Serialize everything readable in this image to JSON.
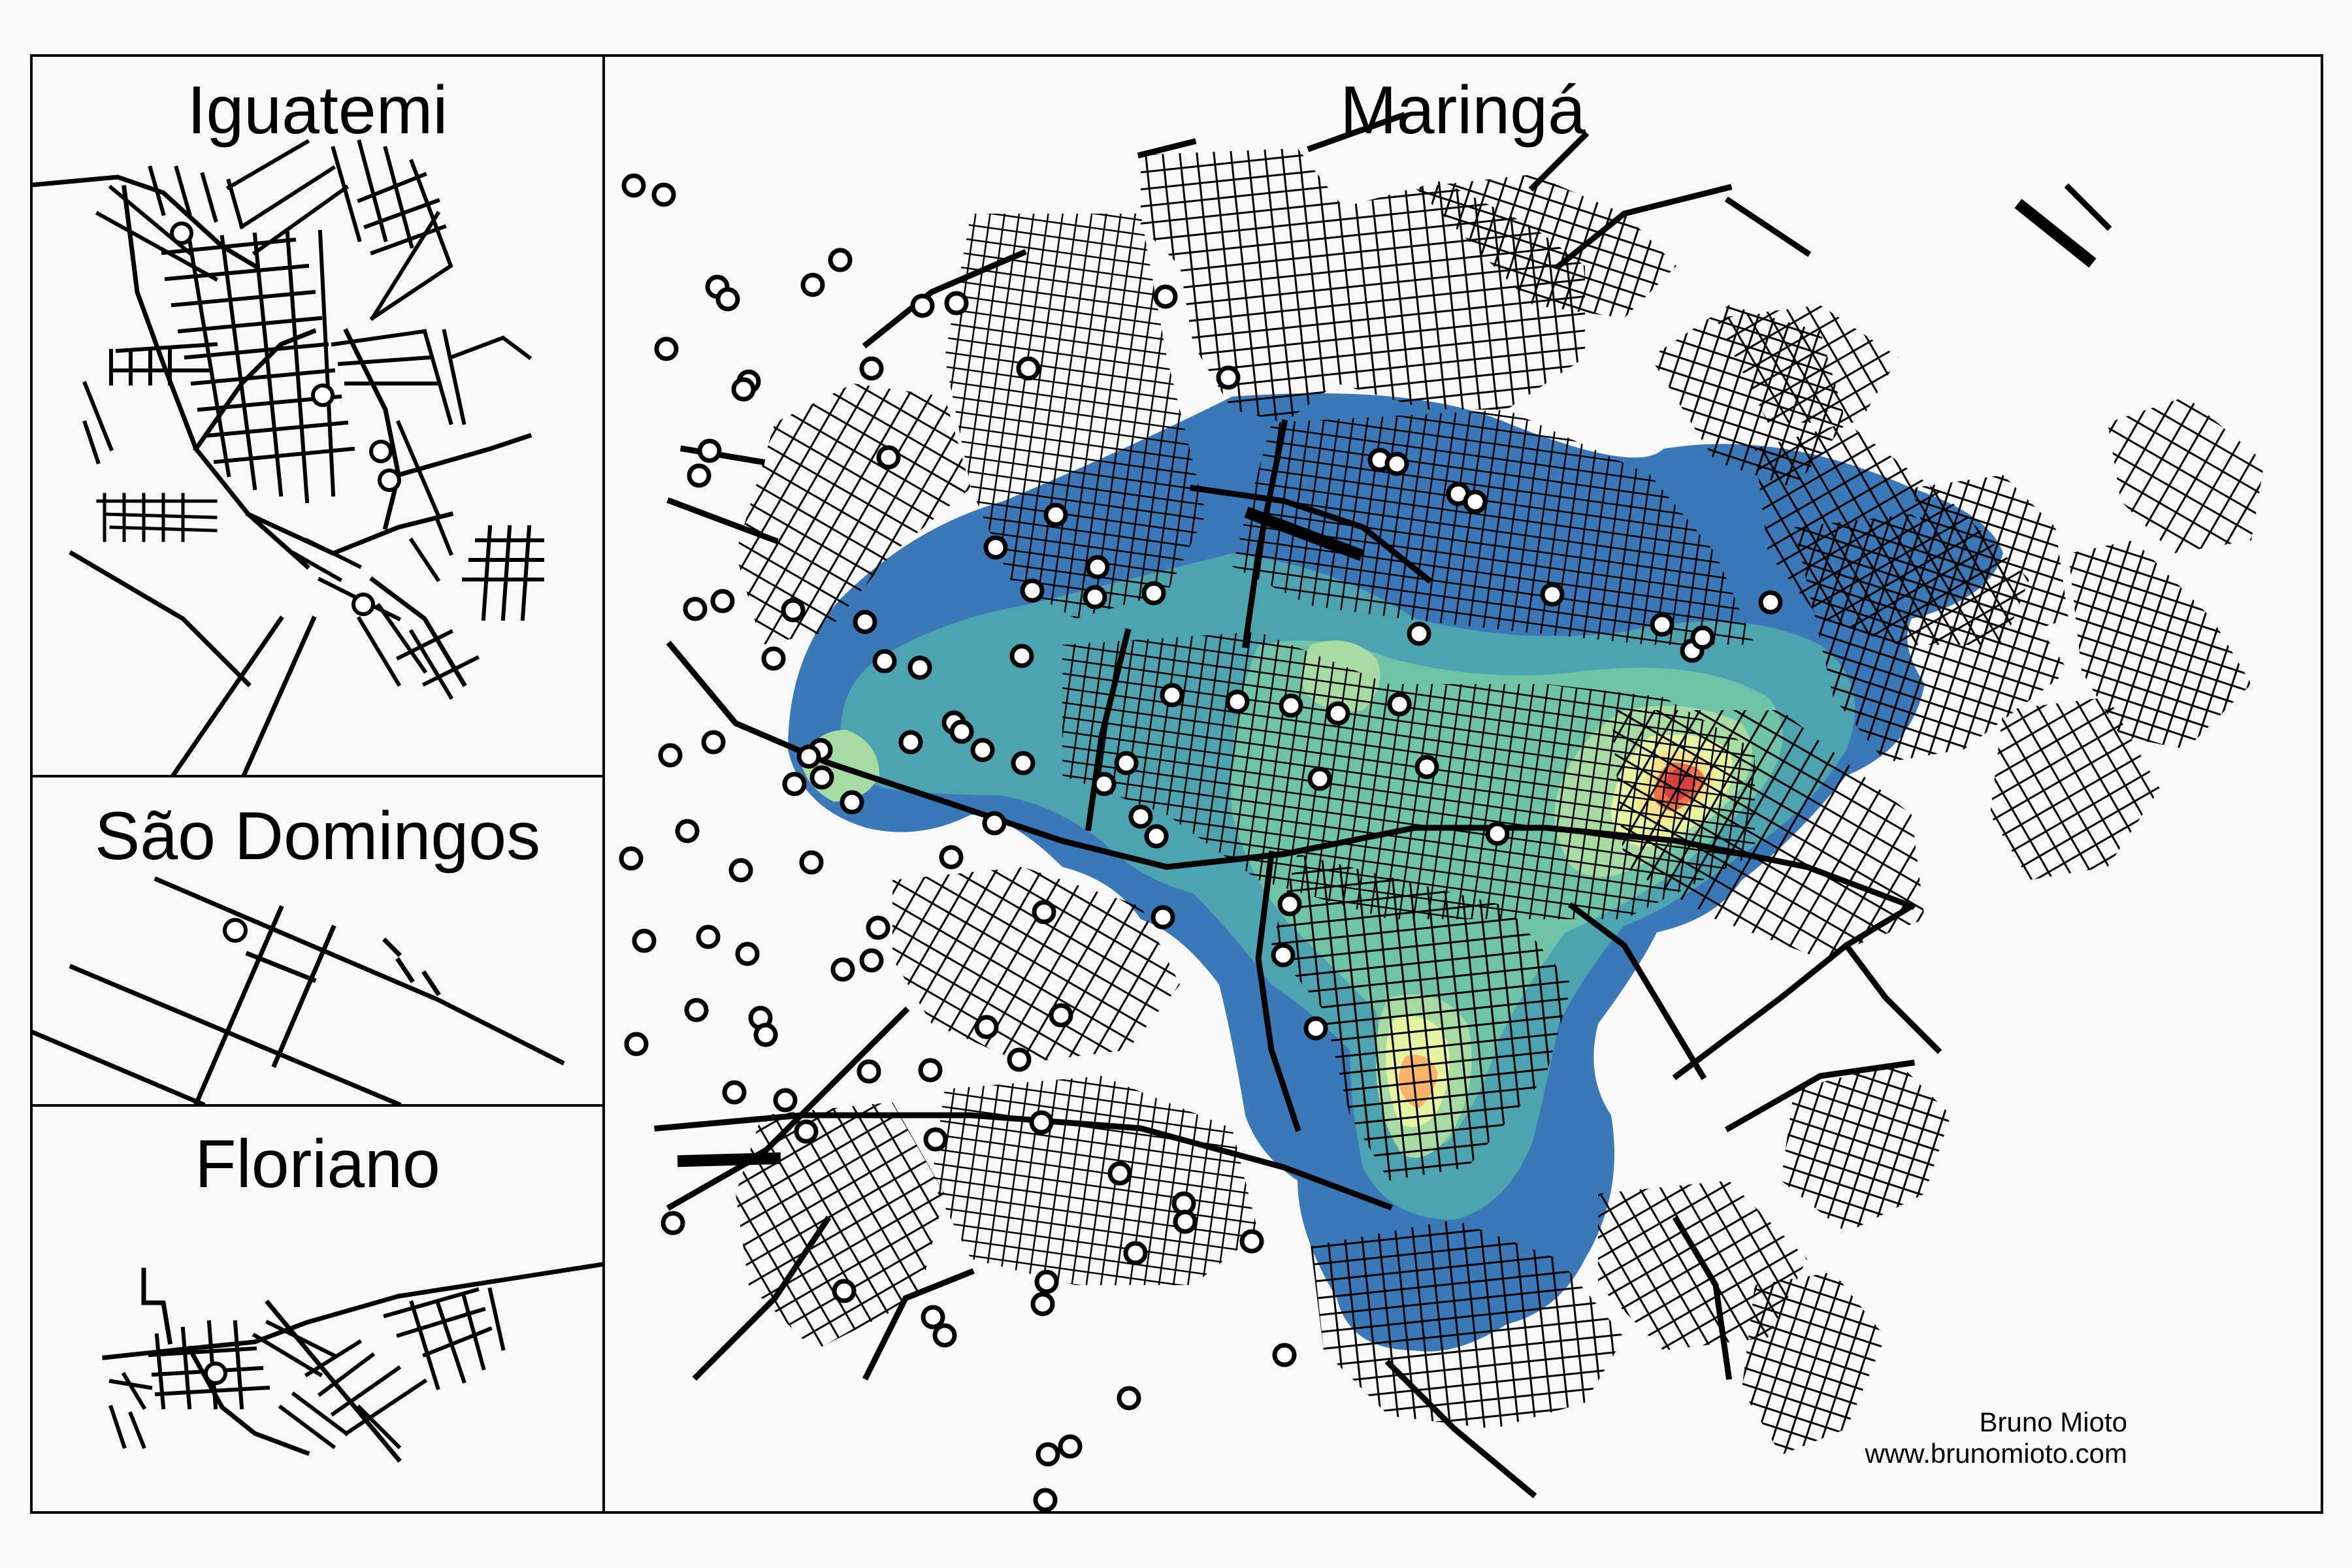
{
  "panels": {
    "iguatemi": {
      "title": "Iguatemi"
    },
    "sao_domingos": {
      "title": "São Domingos"
    },
    "floriano": {
      "title": "Floriano"
    },
    "maringa": {
      "title": "Maringá"
    }
  },
  "credit": {
    "author": "Bruno Mioto",
    "website": "www.brunomioto.com"
  },
  "heatmap_palette": [
    "#3b78b8",
    "#4ea3b1",
    "#6ec3a8",
    "#a8dba3",
    "#e6f3a0",
    "#fde28e",
    "#fbb36a",
    "#f06f45",
    "#d6403e"
  ],
  "colors": {
    "road": "#000000",
    "point_fill": "#ffffff",
    "frame": "#000000",
    "background": "#f9f9f9"
  },
  "marker": {
    "shape": "circle",
    "fill": "white",
    "outline": "black"
  }
}
